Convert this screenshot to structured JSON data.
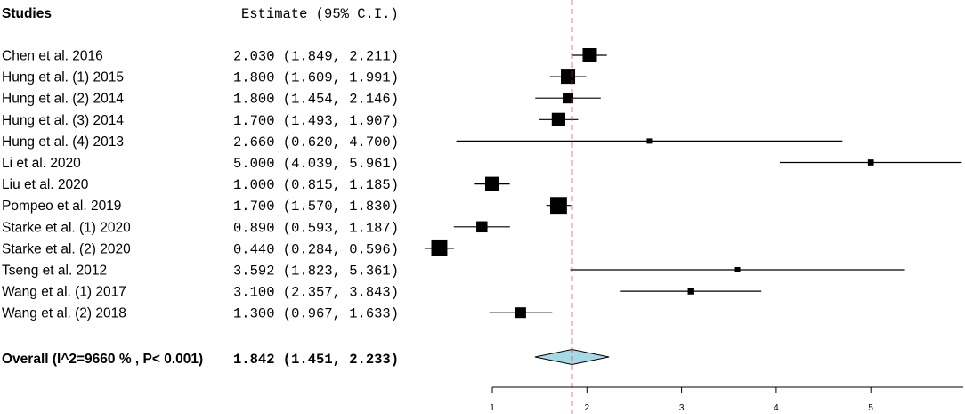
{
  "header": {
    "studies_label": "Studies",
    "estimate_label": "Estimate (95% C.I.)"
  },
  "overall": {
    "label": "Overall (I^2=9660 % , P< 0.001)",
    "estimate_text": "1.842 (1.451, 2.233)",
    "estimate": 1.842,
    "ci_lower": 1.451,
    "ci_upper": 2.233,
    "diamond_fill": "#a6d8e6"
  },
  "reference_line": {
    "value": 1.842,
    "color": "#e0302a",
    "style": "dashed"
  },
  "chart_data": {
    "type": "forest",
    "title": "",
    "xlabel": "",
    "ylabel": "",
    "xlim": [
      0.3,
      5.98
    ],
    "ticks": [
      1,
      2,
      3,
      4,
      5
    ],
    "tick_labels": [
      "1",
      "2",
      "3",
      "4",
      "5"
    ],
    "grid": false,
    "legend": "none",
    "studies": [
      {
        "study": "Chen et al. 2016",
        "text": "2.030 (1.849, 2.211)",
        "estimate": 2.03,
        "lower": 1.849,
        "upper": 2.211,
        "weight": 1.0
      },
      {
        "study": "Hung et al. (1) 2015",
        "text": "1.800 (1.609, 1.991)",
        "estimate": 1.8,
        "lower": 1.609,
        "upper": 1.991,
        "weight": 1.0
      },
      {
        "study": "Hung et al. (2) 2014",
        "text": "1.800 (1.454, 2.146)",
        "estimate": 1.8,
        "lower": 1.454,
        "upper": 2.146,
        "weight": 0.75
      },
      {
        "study": "Hung et al. (3) 2014",
        "text": "1.700 (1.493, 1.907)",
        "estimate": 1.7,
        "lower": 1.493,
        "upper": 1.907,
        "weight": 0.95
      },
      {
        "study": "Hung et al. (4) 2013",
        "text": "2.660 (0.620, 4.700)",
        "estimate": 2.66,
        "lower": 0.62,
        "upper": 4.7,
        "weight": 0.22
      },
      {
        "study": "Li et al. 2020",
        "text": "5.000 (4.039, 5.961)",
        "estimate": 5.0,
        "lower": 4.039,
        "upper": 5.961,
        "weight": 0.42
      },
      {
        "study": "Liu et al. 2020",
        "text": "1.000 (0.815, 1.185)",
        "estimate": 1.0,
        "lower": 0.815,
        "upper": 1.185,
        "weight": 1.0
      },
      {
        "study": "Pompeo et al. 2019",
        "text": "1.700 (1.570, 1.830)",
        "estimate": 1.7,
        "lower": 1.57,
        "upper": 1.83,
        "weight": 1.18
      },
      {
        "study": "Starke et al. (1) 2020",
        "text": "0.890 (0.593, 1.187)",
        "estimate": 0.89,
        "lower": 0.593,
        "upper": 1.187,
        "weight": 0.78
      },
      {
        "study": "Starke et al. (2) 2020",
        "text": "0.440 (0.284, 0.596)",
        "estimate": 0.44,
        "lower": 0.284,
        "upper": 0.596,
        "weight": 1.12
      },
      {
        "study": "Tseng et al. 2012",
        "text": "3.592 (1.823, 5.361)",
        "estimate": 3.592,
        "lower": 1.823,
        "upper": 5.361,
        "weight": 0.22
      },
      {
        "study": "Wang et al. (1) 2017",
        "text": "3.100 (2.357, 3.843)",
        "estimate": 3.1,
        "lower": 2.357,
        "upper": 3.843,
        "weight": 0.46
      },
      {
        "study": "Wang et al. (2) 2018",
        "text": "1.300 (0.967, 1.633)",
        "estimate": 1.3,
        "lower": 0.967,
        "upper": 1.633,
        "weight": 0.75
      }
    ]
  }
}
